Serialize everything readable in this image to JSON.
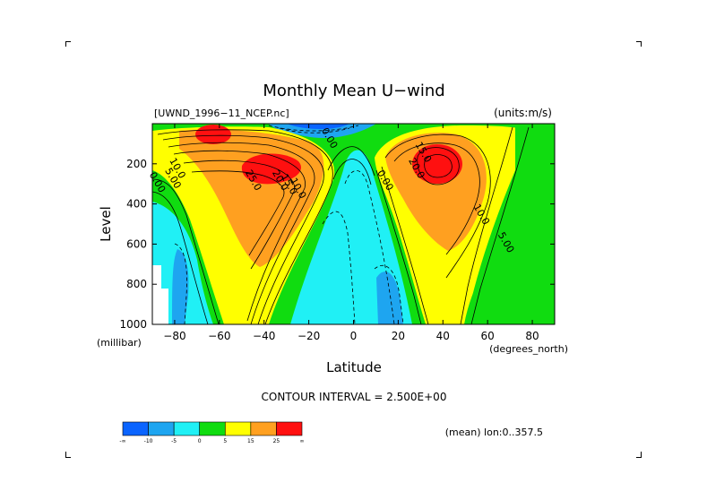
{
  "chart_data": {
    "type": "heatmap",
    "title": "Monthly Mean U−wind",
    "dataset_label": "[UWND_1996−11_NCEP.nc]",
    "units_label": "(units:m/s)",
    "xlabel": "Latitude",
    "x_units": "(degrees_north)",
    "ylabel": "Level",
    "y_units": "(millibar)",
    "xlim": [
      -90,
      90
    ],
    "ylim": [
      1000,
      0
    ],
    "x_ticks": [
      {
        "value": -80,
        "label": "−80"
      },
      {
        "value": -60,
        "label": "−60"
      },
      {
        "value": -40,
        "label": "−40"
      },
      {
        "value": -20,
        "label": "−20"
      },
      {
        "value": 0,
        "label": "0"
      },
      {
        "value": 20,
        "label": "20"
      },
      {
        "value": 40,
        "label": "40"
      },
      {
        "value": 60,
        "label": "60"
      },
      {
        "value": 80,
        "label": "80"
      }
    ],
    "y_ticks": [
      {
        "value": 200,
        "label": "200"
      },
      {
        "value": 400,
        "label": "400"
      },
      {
        "value": 600,
        "label": "600"
      },
      {
        "value": 800,
        "label": "800"
      },
      {
        "value": 1000,
        "label": "1000"
      }
    ],
    "contour_interval": "CONTOUR INTERVAL = 2.500E+00",
    "footer_note": "(mean) lon:0..357.5",
    "colorbar": {
      "bins": [
        {
          "color": "#0a64ff"
        },
        {
          "color": "#1ea5f0"
        },
        {
          "color": "#20f0f5"
        },
        {
          "color": "#10dc10"
        },
        {
          "color": "#ffff00"
        },
        {
          "color": "#ffa020"
        },
        {
          "color": "#ff1010"
        }
      ],
      "labels": [
        "-∞",
        "-10",
        "-5",
        "0",
        "5",
        "15",
        "25",
        "∞"
      ]
    },
    "contour_labels": [
      {
        "text": "10.0",
        "x": -80,
        "y": 230
      },
      {
        "text": "5.00",
        "x": -82,
        "y": 280
      },
      {
        "text": "0.00",
        "x": -89,
        "y": 300
      },
      {
        "text": "25.0",
        "x": -46,
        "y": 290
      },
      {
        "text": "20.0",
        "x": -34,
        "y": 290
      },
      {
        "text": "15.0",
        "x": -30,
        "y": 310
      },
      {
        "text": "10.0",
        "x": -26,
        "y": 330
      },
      {
        "text": "0.00",
        "x": -12,
        "y": 80
      },
      {
        "text": "0.00",
        "x": 13,
        "y": 290
      },
      {
        "text": "15.0",
        "x": 30,
        "y": 150
      },
      {
        "text": "20.0",
        "x": 27,
        "y": 230
      },
      {
        "text": "10.0",
        "x": 56,
        "y": 460
      },
      {
        "text": "5.00",
        "x": 67,
        "y": 600
      }
    ]
  }
}
